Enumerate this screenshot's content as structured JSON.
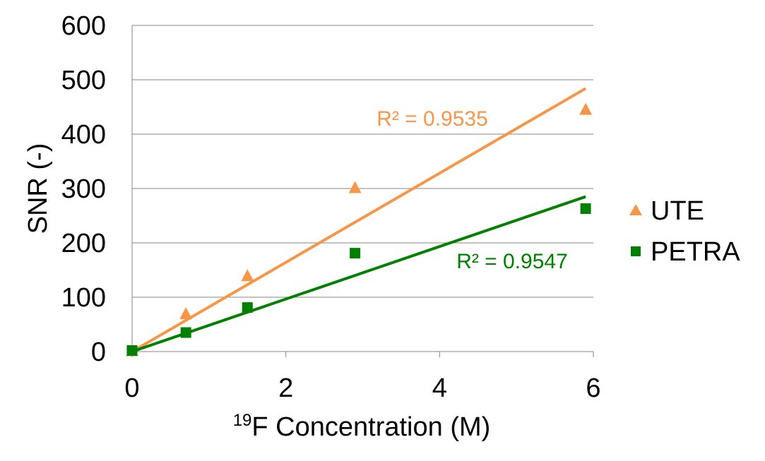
{
  "chart_data": {
    "type": "scatter",
    "title": "",
    "xlabel_sup": "19",
    "xlabel": "F Concentration (M)",
    "ylabel": "SNR (-)",
    "xlim": [
      0,
      6
    ],
    "ylim": [
      0,
      600
    ],
    "x_ticks": [
      "0",
      "2",
      "4",
      "6"
    ],
    "y_ticks": [
      "0",
      "100",
      "200",
      "300",
      "400",
      "500",
      "600"
    ],
    "grid": "horizontal",
    "legend_position": "right",
    "series": [
      {
        "name": "UTE",
        "marker": "triangle",
        "color": "#F79646",
        "x": [
          0,
          0.7,
          1.5,
          2.9,
          5.9
        ],
        "y": [
          2,
          70,
          140,
          302,
          446
        ],
        "trendline": {
          "type": "linear",
          "x": [
            0,
            5.9
          ],
          "y": [
            0,
            484
          ]
        },
        "r2_label": "R² = 0.9535"
      },
      {
        "name": "PETRA",
        "marker": "square",
        "color": "#008000",
        "x": [
          0,
          0.7,
          1.5,
          2.9,
          5.9
        ],
        "y": [
          2,
          35,
          81,
          181,
          263
        ],
        "trendline": {
          "type": "linear",
          "x": [
            0,
            5.9
          ],
          "y": [
            0,
            285
          ]
        },
        "r2_label": "R² = 0.9547"
      }
    ]
  }
}
